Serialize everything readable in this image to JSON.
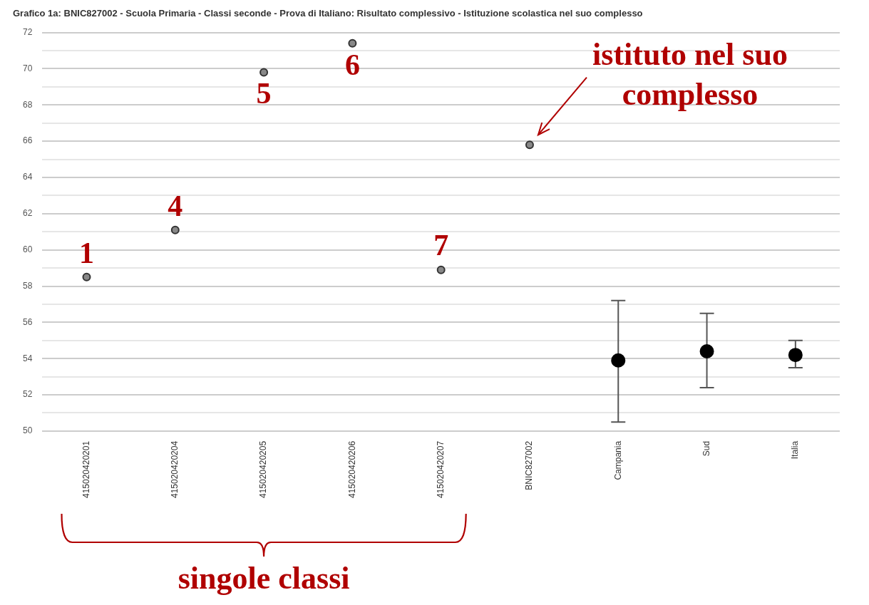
{
  "chart_data": {
    "type": "scatter",
    "title": "Grafico 1a: BNIC827002 - Scuola Primaria - Classi seconde - Prova di Italiano: Risultato complessivo - Istituzione scolastica nel suo complesso",
    "categories": [
      "415020420201",
      "415020420204",
      "415020420205",
      "415020420206",
      "415020420207",
      "BNIC827002",
      "Campania",
      "Sud",
      "Italia"
    ],
    "series": [
      {
        "color": "#333333",
        "marker": "circle",
        "values": [
          58.5,
          61.1,
          69.8,
          71.4,
          58.9,
          65.8,
          null,
          null,
          null
        ]
      },
      {
        "color": "#000000",
        "marker": "circle",
        "values": [
          null,
          null,
          null,
          null,
          null,
          null,
          53.9,
          54.4,
          54.2
        ],
        "errors": [
          null,
          null,
          null,
          null,
          null,
          null,
          [
            50.5,
            57.2
          ],
          [
            52.4,
            56.5
          ],
          [
            53.5,
            55.0
          ]
        ]
      }
    ],
    "ylim": [
      50,
      72
    ],
    "yticks": [
      50,
      {
        "value": 51,
        "label": null
      },
      52,
      {
        "value": 53,
        "label": null
      },
      54,
      {
        "value": 55,
        "label": null
      },
      56,
      {
        "value": 57,
        "label": null
      },
      58,
      {
        "value": 59,
        "label": null
      },
      60,
      {
        "value": 61,
        "label": null
      },
      62,
      {
        "value": 63,
        "label": null
      },
      64,
      {
        "value": 65,
        "label": null
      },
      66,
      {
        "value": 67,
        "label": null
      },
      68,
      {
        "value": 69,
        "label": null
      },
      70,
      {
        "value": 71,
        "label": null
      },
      72
    ],
    "grid": "y",
    "legend": false,
    "annotations": [
      {
        "text": "1",
        "x": "415020420201",
        "y": 58.5
      },
      {
        "text": "4",
        "x": "415020420204",
        "y": 61.1
      },
      {
        "text": "5",
        "x": "415020420205",
        "y": 69.8
      },
      {
        "text": "6",
        "x": "415020420206",
        "y": 71.4
      },
      {
        "text": "7",
        "x": "415020420207",
        "y": 58.9
      },
      {
        "text": "istituto nel suo complesso",
        "x": "BNIC827002",
        "y": 65.8
      },
      "singole classi"
    ]
  }
}
